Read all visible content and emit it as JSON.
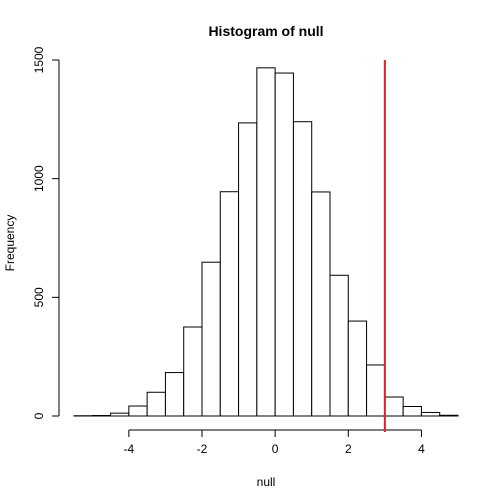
{
  "chart_data": {
    "type": "bar",
    "title": "Histogram of null",
    "xlabel": "null",
    "ylabel": "Frequency",
    "xlim": [
      -5.5,
      5
    ],
    "ylim": [
      0,
      1500
    ],
    "x_ticks": [
      -4,
      -2,
      0,
      2,
      4
    ],
    "y_ticks": [
      0,
      500,
      1000,
      1500
    ],
    "bins": [
      {
        "start": -5.5,
        "end": -5.0,
        "count": 1
      },
      {
        "start": -5.0,
        "end": -4.5,
        "count": 2
      },
      {
        "start": -4.5,
        "end": -4.0,
        "count": 12
      },
      {
        "start": -4.0,
        "end": -3.5,
        "count": 42
      },
      {
        "start": -3.5,
        "end": -3.0,
        "count": 100
      },
      {
        "start": -3.0,
        "end": -2.5,
        "count": 183
      },
      {
        "start": -2.5,
        "end": -2.0,
        "count": 375
      },
      {
        "start": -2.0,
        "end": -1.5,
        "count": 648
      },
      {
        "start": -1.5,
        "end": -1.0,
        "count": 945
      },
      {
        "start": -1.0,
        "end": -0.5,
        "count": 1235
      },
      {
        "start": -0.5,
        "end": 0.0,
        "count": 1467
      },
      {
        "start": 0.0,
        "end": 0.5,
        "count": 1445
      },
      {
        "start": 0.5,
        "end": 1.0,
        "count": 1240
      },
      {
        "start": 1.0,
        "end": 1.5,
        "count": 944
      },
      {
        "start": 1.5,
        "end": 2.0,
        "count": 593
      },
      {
        "start": 2.0,
        "end": 2.5,
        "count": 400
      },
      {
        "start": 2.5,
        "end": 3.0,
        "count": 215
      },
      {
        "start": 3.0,
        "end": 3.5,
        "count": 80
      },
      {
        "start": 3.5,
        "end": 4.0,
        "count": 40
      },
      {
        "start": 4.0,
        "end": 4.5,
        "count": 15
      },
      {
        "start": 4.5,
        "end": 5.0,
        "count": 3
      }
    ],
    "reference_line": {
      "x": 3.0,
      "color": "#dd2222"
    },
    "bar_fill": "#ffffff",
    "bar_stroke": "#000000",
    "grid": false
  }
}
